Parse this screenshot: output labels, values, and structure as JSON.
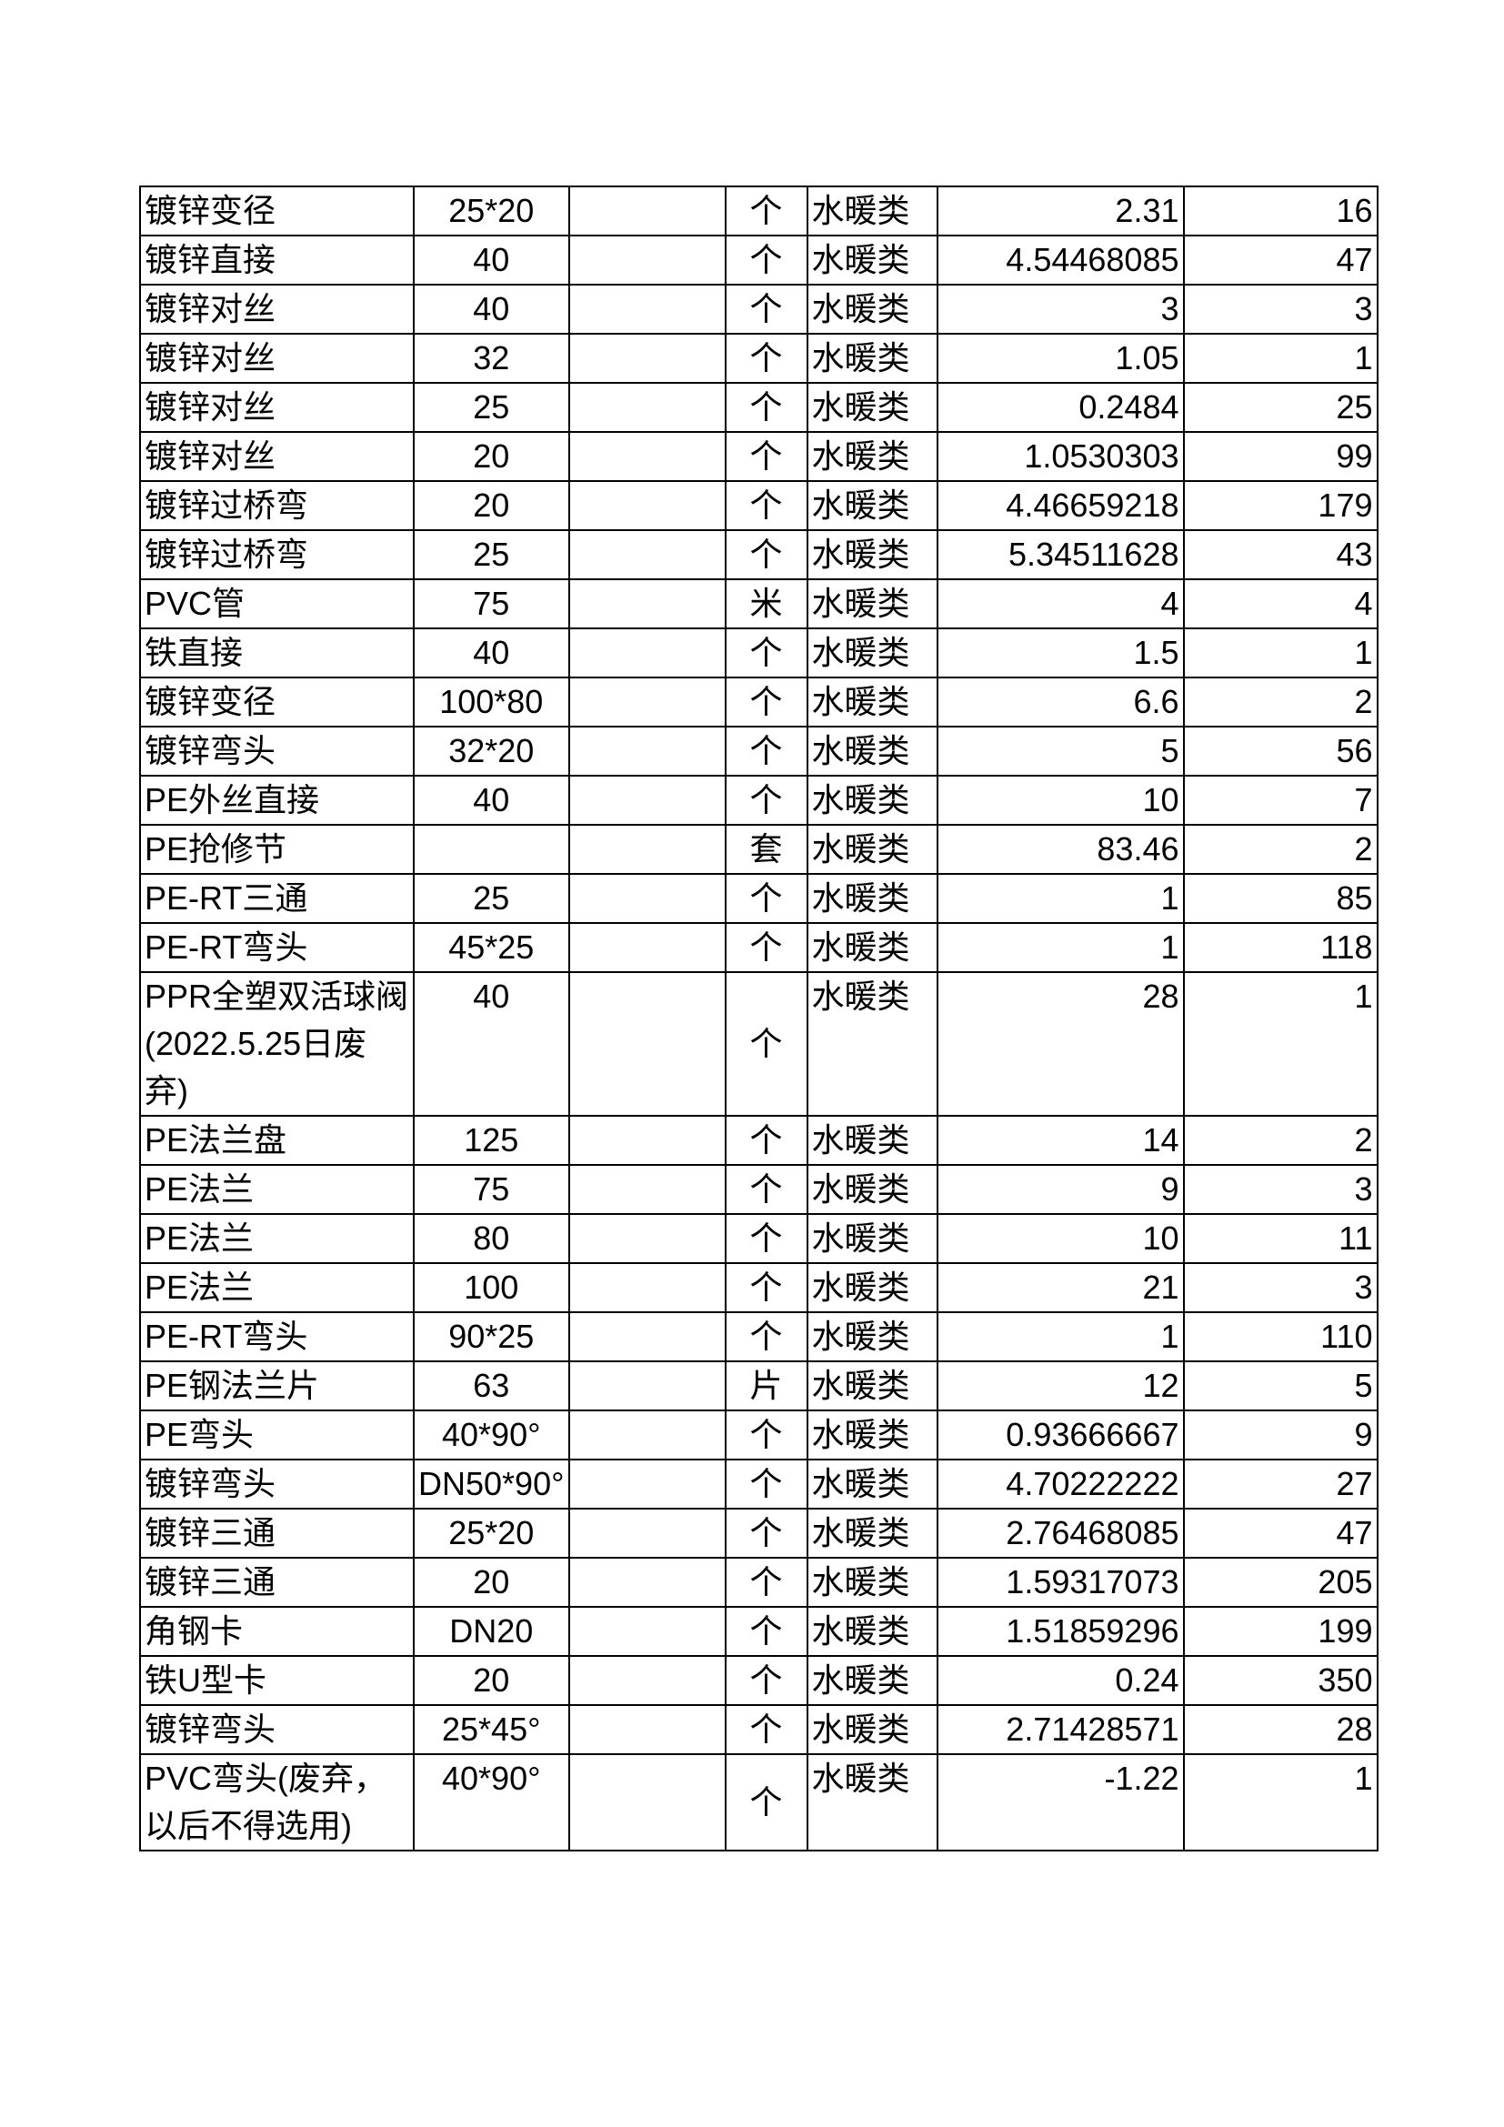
{
  "table": {
    "rows": [
      [
        "镀锌变径",
        "25*20",
        "个",
        "水暖类",
        "2.31",
        "16"
      ],
      [
        "镀锌直接",
        "40",
        "个",
        "水暖类",
        "4.54468085",
        "47"
      ],
      [
        "镀锌对丝",
        "40",
        "个",
        "水暖类",
        "3",
        "3"
      ],
      [
        "镀锌对丝",
        "32",
        "个",
        "水暖类",
        "1.05",
        "1"
      ],
      [
        "镀锌对丝",
        "25",
        "个",
        "水暖类",
        "0.2484",
        "25"
      ],
      [
        "镀锌对丝",
        "20",
        "个",
        "水暖类",
        "1.0530303",
        "99"
      ],
      [
        "镀锌过桥弯",
        "20",
        "个",
        "水暖类",
        "4.46659218",
        "179"
      ],
      [
        "镀锌过桥弯",
        "25",
        "个",
        "水暖类",
        "5.34511628",
        "43"
      ],
      [
        "PVC管",
        "75",
        "米",
        "水暖类",
        "4",
        "4"
      ],
      [
        "铁直接",
        "40",
        "个",
        "水暖类",
        "1.5",
        "1"
      ],
      [
        "镀锌变径",
        "100*80",
        "个",
        "水暖类",
        "6.6",
        "2"
      ],
      [
        "镀锌弯头",
        "32*20",
        "个",
        "水暖类",
        "5",
        "56"
      ],
      [
        "PE外丝直接",
        "40",
        "个",
        "水暖类",
        "10",
        "7"
      ],
      [
        "PE抢修节",
        "",
        "套",
        "水暖类",
        "83.46",
        "2"
      ],
      [
        "PE-RT三通",
        "25",
        "个",
        "水暖类",
        "1",
        "85"
      ],
      [
        "PE-RT弯头",
        "45*25",
        "个",
        "水暖类",
        "1",
        "118"
      ],
      [
        "PPR全塑双活球阀(2022.5.25日废弃)",
        "40",
        "个",
        "水暖类",
        "28",
        "1"
      ],
      [
        "PE法兰盘",
        "125",
        "个",
        "水暖类",
        "14",
        "2"
      ],
      [
        "PE法兰",
        "75",
        "个",
        "水暖类",
        "9",
        "3"
      ],
      [
        "PE法兰",
        "80",
        "个",
        "水暖类",
        "10",
        "11"
      ],
      [
        "PE法兰",
        "100",
        "个",
        "水暖类",
        "21",
        "3"
      ],
      [
        "PE-RT弯头",
        "90*25",
        "个",
        "水暖类",
        "1",
        "110"
      ],
      [
        "PE钢法兰片",
        "63",
        "片",
        "水暖类",
        "12",
        "5"
      ],
      [
        "PE弯头",
        "40*90°",
        "个",
        "水暖类",
        "0.93666667",
        "9"
      ],
      [
        "镀锌弯头",
        "DN50*90°",
        "个",
        "水暖类",
        "4.70222222",
        "27"
      ],
      [
        "镀锌三通",
        "25*20",
        "个",
        "水暖类",
        "2.76468085",
        "47"
      ],
      [
        "镀锌三通",
        "20",
        "个",
        "水暖类",
        "1.59317073",
        "205"
      ],
      [
        "角钢卡",
        "DN20",
        "个",
        "水暖类",
        "1.51859296",
        "199"
      ],
      [
        "铁U型卡",
        "20",
        "个",
        "水暖类",
        "0.24",
        "350"
      ],
      [
        "镀锌弯头",
        "25*45°",
        "个",
        "水暖类",
        "2.71428571",
        "28"
      ],
      [
        "PVC弯头(废弃，以后不得选用)",
        "40*90°",
        "个",
        "水暖类",
        "-1.22",
        "1"
      ]
    ]
  }
}
